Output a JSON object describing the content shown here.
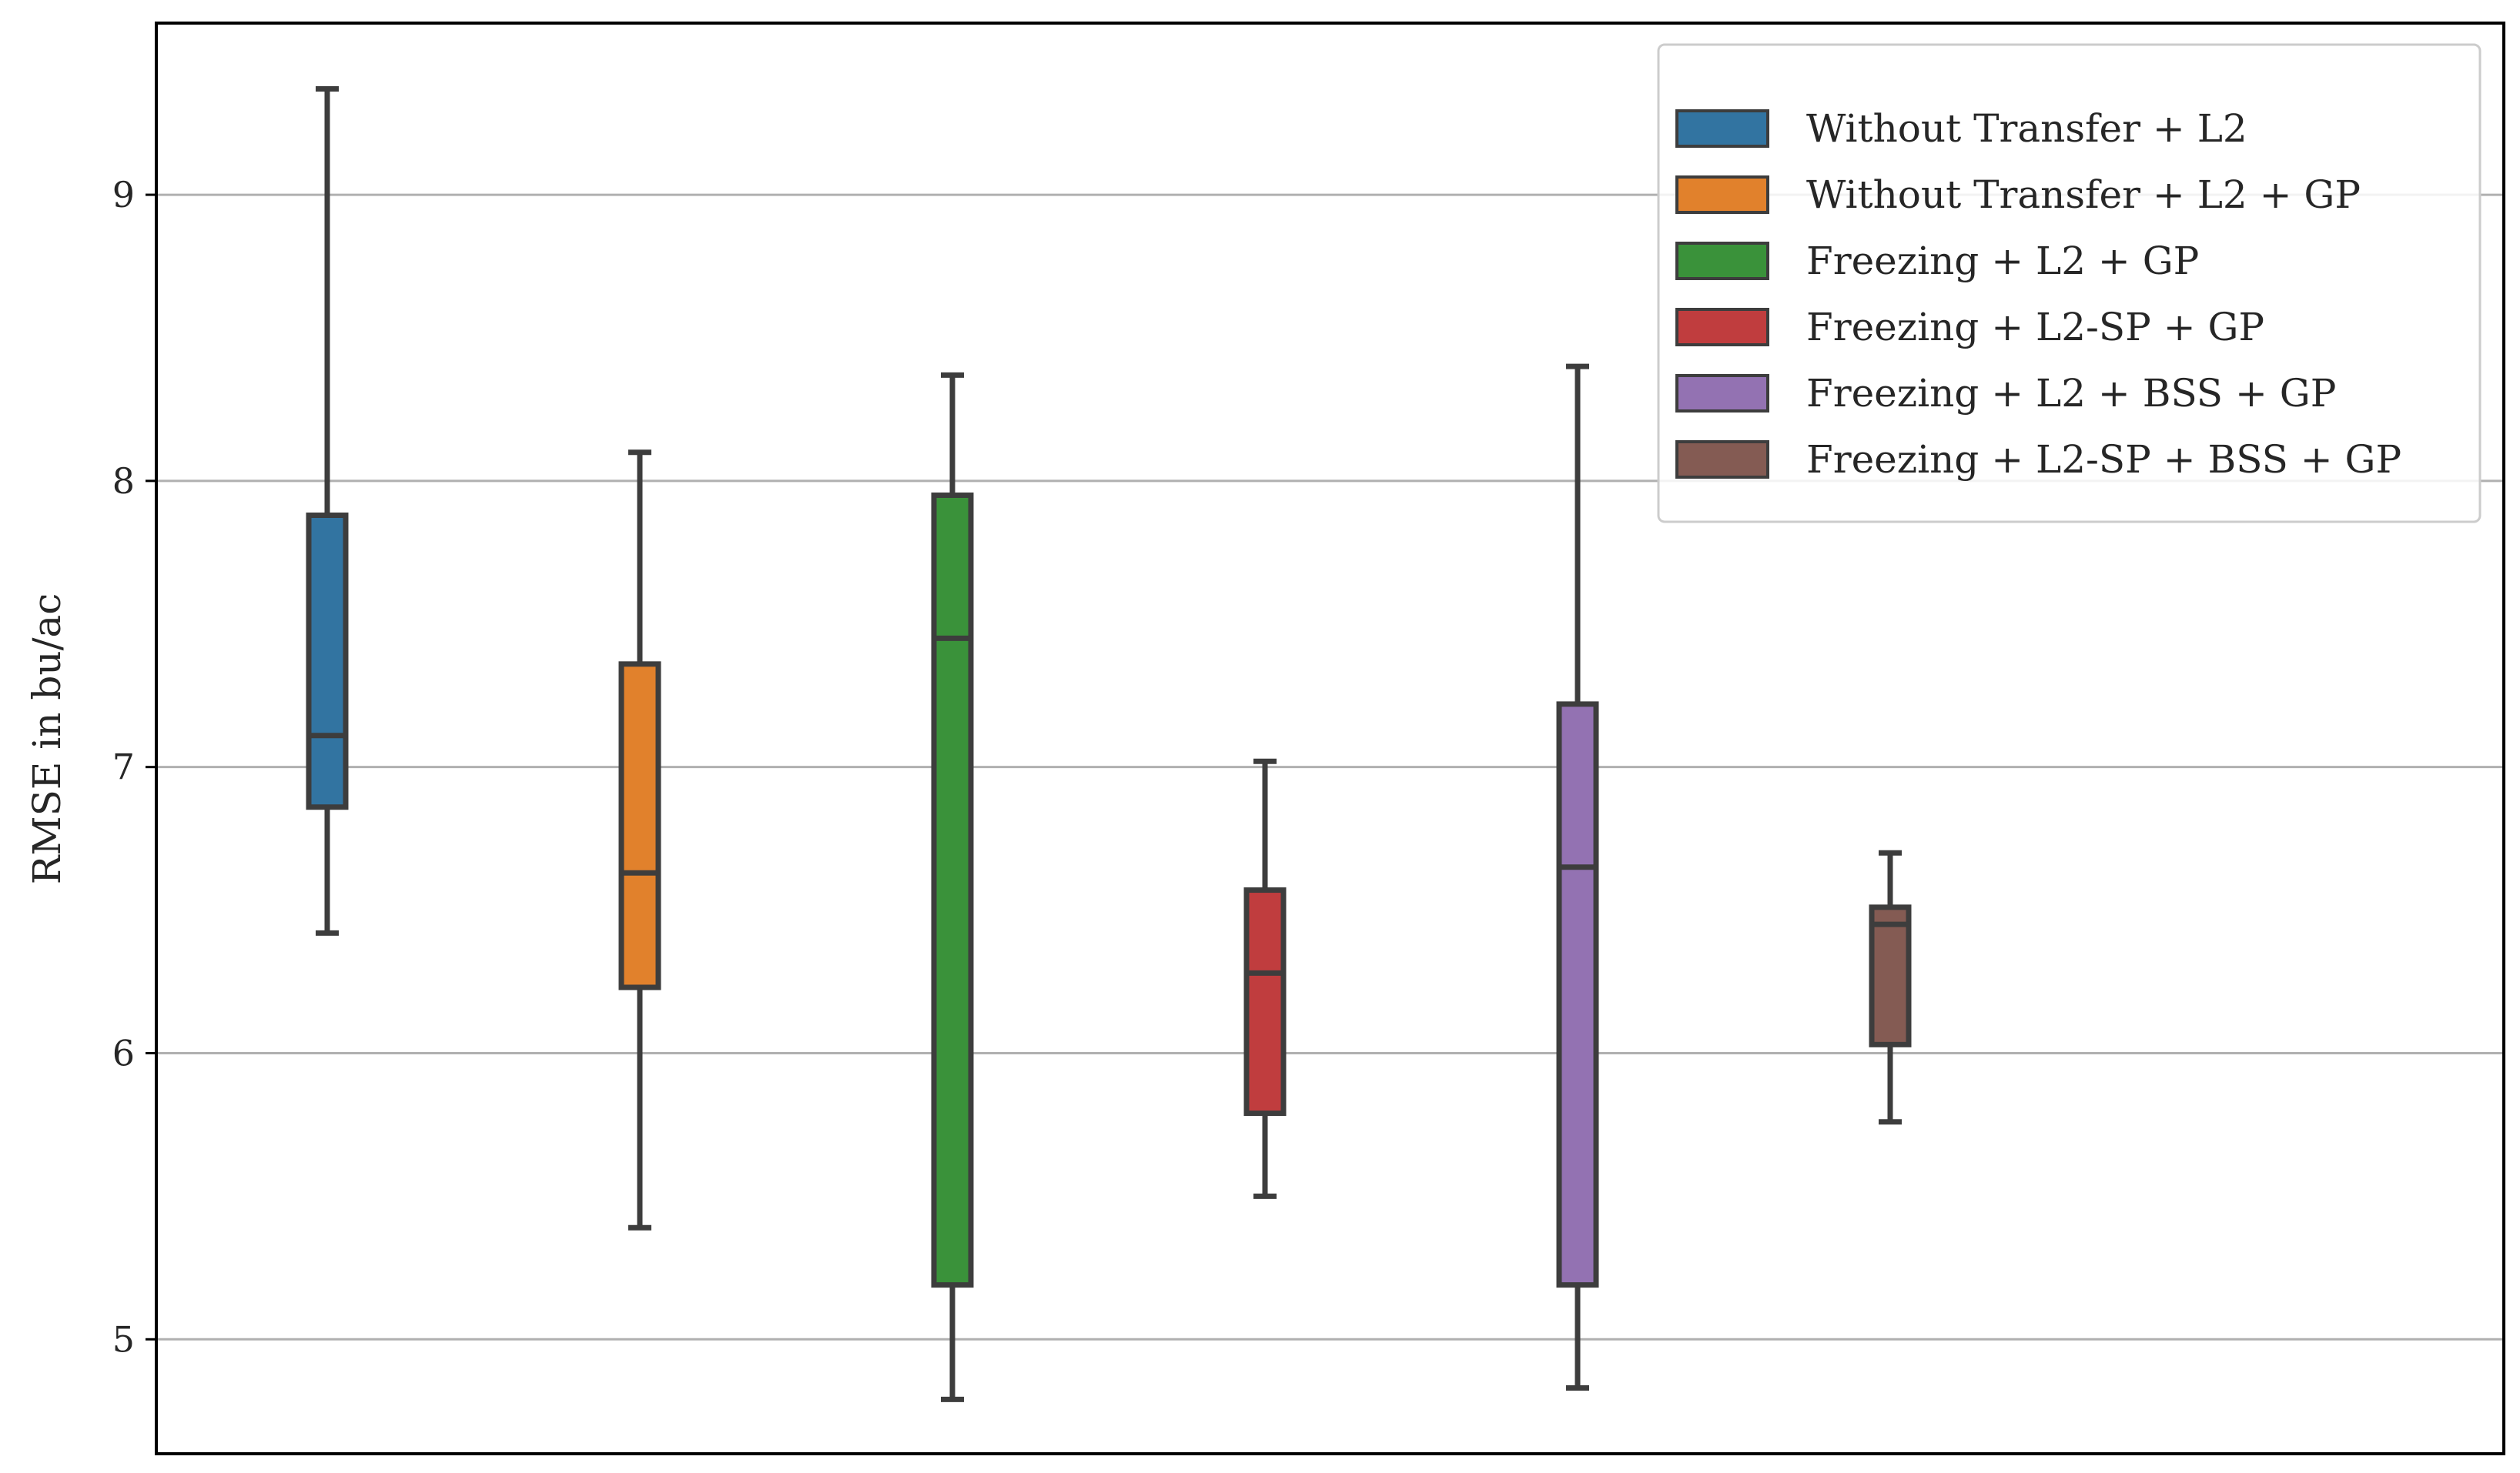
{
  "chart_data": {
    "type": "box",
    "title": "",
    "xlabel": "",
    "ylabel": "RMSE in bu/ac",
    "ylim": [
      4.6,
      9.6
    ],
    "yticks": [
      5,
      6,
      7,
      8,
      9
    ],
    "grid": "horizontal",
    "legend_position": "top-right",
    "series": [
      {
        "name": "Without Transfer + L2",
        "color": "#3274a1",
        "whisker_low": 6.42,
        "q1": 6.86,
        "median": 7.11,
        "q3": 7.88,
        "whisker_high": 9.37
      },
      {
        "name": "Without Transfer + L2 + GP",
        "color": "#e1812c",
        "whisker_low": 5.39,
        "q1": 6.23,
        "median": 6.63,
        "q3": 7.36,
        "whisker_high": 8.1
      },
      {
        "name": "Freezing + L2 + GP",
        "color": "#3a923a",
        "whisker_low": 4.79,
        "q1": 5.19,
        "median": 7.45,
        "q3": 7.95,
        "whisker_high": 8.37
      },
      {
        "name": "Freezing + L2-SP + GP",
        "color": "#c03d3e",
        "whisker_low": 5.5,
        "q1": 5.79,
        "median": 6.28,
        "q3": 6.57,
        "whisker_high": 7.02
      },
      {
        "name": "Freezing + L2 + BSS + GP",
        "color": "#9372b2",
        "whisker_low": 4.83,
        "q1": 5.19,
        "median": 6.65,
        "q3": 7.22,
        "whisker_high": 8.4
      },
      {
        "name": "Freezing + L2-SP + BSS + GP",
        "color": "#845b53",
        "whisker_low": 5.76,
        "q1": 6.03,
        "median": 6.45,
        "q3": 6.51,
        "whisker_high": 6.7
      }
    ]
  }
}
